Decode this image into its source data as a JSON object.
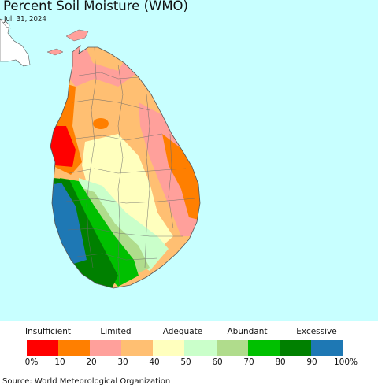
{
  "title": "Percent Soil Moisture (WMO)",
  "date": "Jul. 31, 2024",
  "source": "Source: World Meteorological Organization",
  "legend": {
    "categories": [
      "Insufficient",
      "Limited",
      "Adequate",
      "Abundant",
      "Excessive"
    ],
    "colors": [
      "#ff0000",
      "#ff7f00",
      "#ffa09b",
      "#ffbf72",
      "#ffffbe",
      "#caffca",
      "#b0dc8c",
      "#00c000",
      "#008000",
      "#1e78b4"
    ],
    "ticks": [
      "0%",
      "10",
      "20",
      "30",
      "40",
      "50",
      "60",
      "70",
      "80",
      "90",
      "100%"
    ]
  },
  "map": {
    "ocean_color": "#c8ffff",
    "land_outside_color": "#ffffff"
  }
}
